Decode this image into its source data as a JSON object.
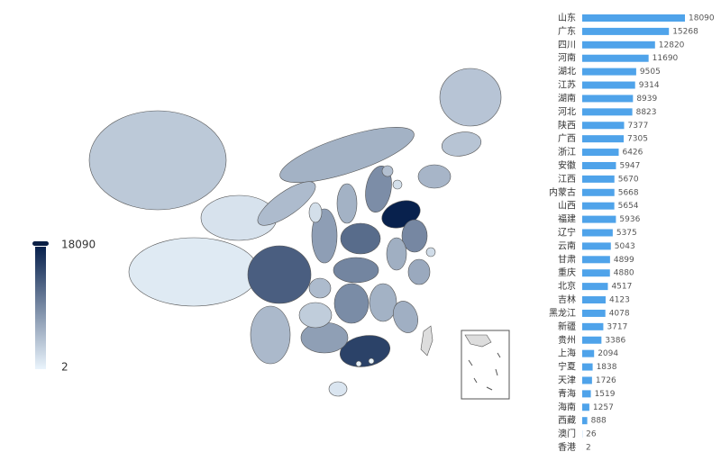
{
  "chart_data": {
    "type": "map",
    "categories": [
      "山东",
      "广东",
      "四川",
      "河南",
      "湖北",
      "江苏",
      "湖南",
      "河北",
      "陕西",
      "广西",
      "浙江",
      "安徽",
      "江西",
      "内蒙古",
      "山西",
      "福建",
      "辽宁",
      "云南",
      "甘肃",
      "重庆",
      "北京",
      "吉林",
      "黑龙江",
      "新疆",
      "贵州",
      "上海",
      "宁夏",
      "天津",
      "青海",
      "海南",
      "西藏",
      "澳门",
      "香港"
    ],
    "values": [
      18090,
      15268,
      12820,
      11690,
      9505,
      9314,
      8939,
      8823,
      7377,
      7305,
      6426,
      5947,
      5670,
      5668,
      5654,
      5936,
      5375,
      5043,
      4899,
      4880,
      4517,
      4123,
      4078,
      3717,
      3386,
      2094,
      1838,
      1726,
      1519,
      1257,
      888,
      26,
      2
    ],
    "bar_color": "#4fa3ea",
    "visual_map": {
      "min": 2,
      "max": 18090,
      "colors": [
        "#eaf4fc",
        "#08214d"
      ]
    }
  }
}
